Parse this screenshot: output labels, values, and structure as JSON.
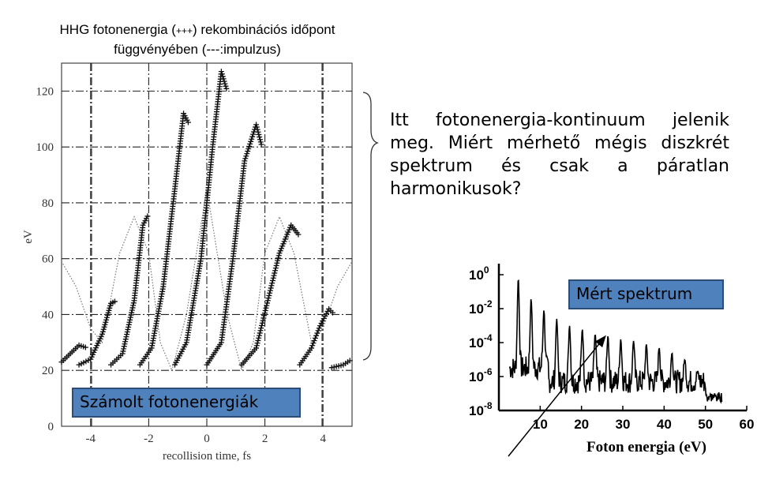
{
  "title": {
    "part1": "HHG fotonenergia (",
    "part2": "+++",
    "part3": ") rekombinációs időpont",
    "line2": "függvényében (---:impulzus)"
  },
  "question_text": "Itt fotonenergia-kontinuum jelenik meg. Miért mérhető mégis diszkrét spektrum és csak a páratlan harmonikusok?",
  "label_computed": "Számolt fotonenergiák",
  "label_measured": "Mért spektrum",
  "colors": {
    "box_fill": "#4f81bd",
    "box_border": "#2c4d75"
  },
  "chart_data": [
    {
      "type": "scatter",
      "xlabel": "recollision time, fs",
      "ylabel": "eV",
      "xlim": [
        -5,
        5
      ],
      "ylim": [
        0,
        130
      ],
      "xticks": [
        "-4",
        "-2",
        "0",
        "2",
        "4"
      ],
      "yticks": [
        "0",
        "20",
        "40",
        "60",
        "80",
        "100",
        "120"
      ],
      "grid": true,
      "series": [
        {
          "marker": "+",
          "segments": [
            {
              "x": [
                -5.0,
                -4.7,
                -4.4,
                -4.1
              ],
              "y": [
                23,
                26,
                29,
                28
              ]
            },
            {
              "x": [
                -4.4,
                -4.0,
                -3.6,
                -3.3,
                -3.1
              ],
              "y": [
                22,
                24,
                33,
                44,
                45
              ]
            },
            {
              "x": [
                -3.3,
                -2.9,
                -2.5,
                -2.2,
                -2.0
              ],
              "y": [
                22,
                26,
                45,
                72,
                76
              ]
            },
            {
              "x": [
                -2.3,
                -1.9,
                -1.5,
                -1.1,
                -0.8,
                -0.6
              ],
              "y": [
                22,
                28,
                50,
                85,
                112,
                108
              ]
            },
            {
              "x": [
                -1.1,
                -0.7,
                -0.2,
                0.2,
                0.5,
                0.7
              ],
              "y": [
                22,
                30,
                60,
                100,
                127,
                120
              ]
            },
            {
              "x": [
                0.0,
                0.5,
                0.9,
                1.3,
                1.7,
                1.9
              ],
              "y": [
                22,
                30,
                60,
                95,
                108,
                100
              ]
            },
            {
              "x": [
                1.2,
                1.7,
                2.1,
                2.5,
                2.9,
                3.2
              ],
              "y": [
                22,
                28,
                45,
                62,
                72,
                68
              ]
            },
            {
              "x": [
                3.2,
                3.6,
                3.9,
                4.2,
                4.4
              ],
              "y": [
                22,
                28,
                36,
                42,
                40
              ]
            },
            {
              "x": [
                4.3,
                4.7,
                5.0
              ],
              "y": [
                21,
                22,
                24
              ]
            }
          ]
        },
        {
          "line_style": "dotted",
          "x": [
            -5.0,
            -4.5,
            -4.0,
            -3.6,
            -3.0,
            -2.5,
            -2.0,
            -1.6,
            -1.2,
            -0.7,
            0.0,
            0.7,
            1.2,
            1.6,
            2.0,
            2.5,
            3.0,
            3.6,
            4.0,
            4.5,
            5.0
          ],
          "y": [
            59,
            50,
            35,
            30,
            62,
            75,
            62,
            30,
            20,
            40,
            85,
            40,
            20,
            30,
            62,
            75,
            62,
            30,
            35,
            50,
            59
          ]
        }
      ]
    },
    {
      "type": "line",
      "xlabel": "Foton energia (eV)",
      "xlim": [
        0,
        60
      ],
      "ylim_log10": [
        -8,
        0
      ],
      "xticks": [
        "10",
        "20",
        "30",
        "40",
        "50",
        "60"
      ],
      "yticks": [
        "10",
        "10",
        "10",
        "10",
        "10"
      ],
      "ytick_exponents": [
        "0",
        "-2",
        "-4",
        "-6",
        "-8"
      ],
      "harmonic_peaks": {
        "x": [
          4.7,
          7.8,
          10.9,
          14.0,
          17.1,
          20.2,
          23.3,
          26.4,
          29.5,
          32.6,
          35.7,
          38.8,
          41.9,
          45.0,
          48.1,
          51.2
        ],
        "log10_y": [
          -0.2,
          -1.4,
          -2.1,
          -2.6,
          -3.0,
          -3.2,
          -3.5,
          -3.6,
          -3.8,
          -3.9,
          -4.1,
          -4.3,
          -4.6,
          -5.0,
          -5.7,
          -7.0
        ]
      },
      "background_log10": -6.3
    }
  ]
}
